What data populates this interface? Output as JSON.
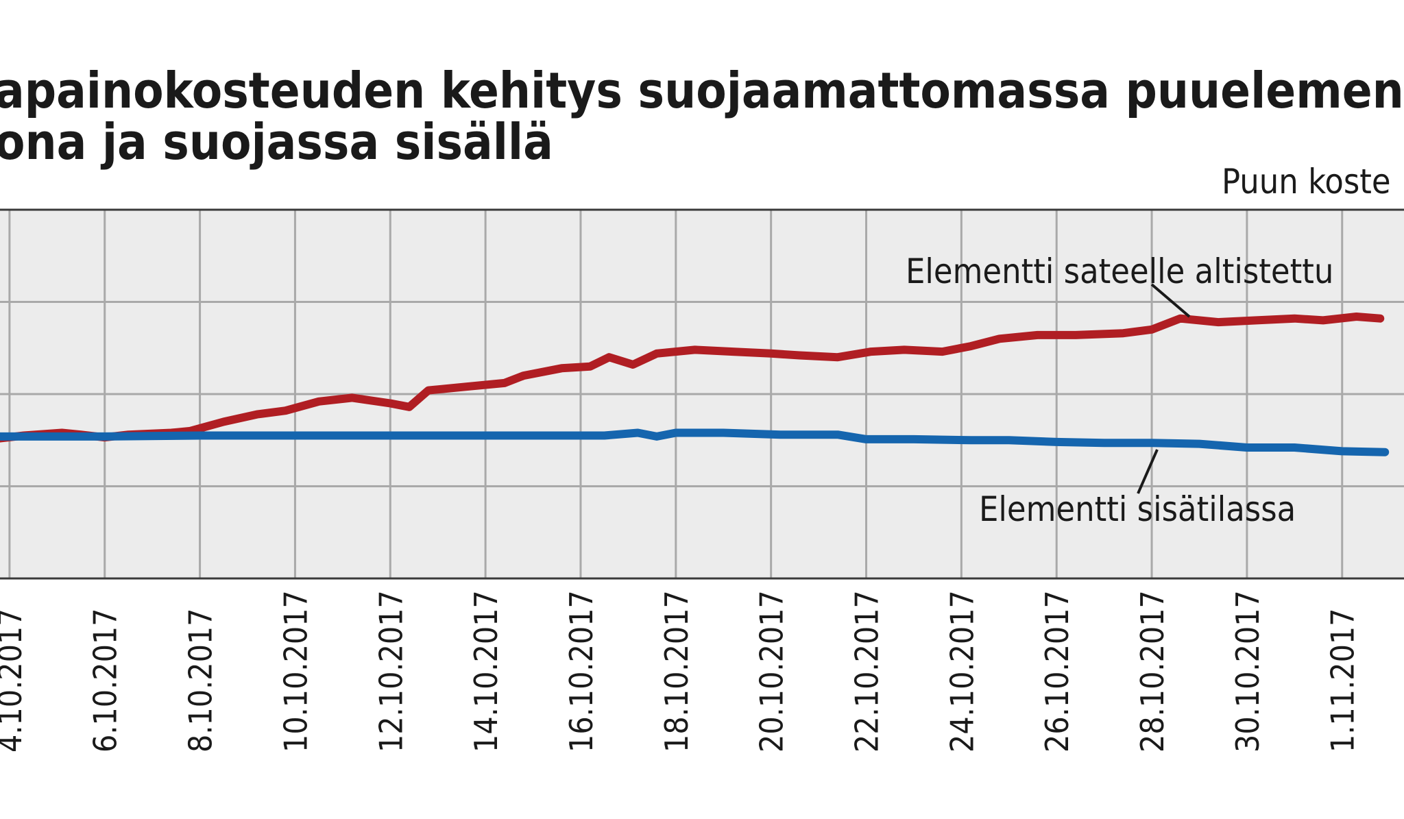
{
  "chart_data": {
    "type": "line",
    "title_line1": "apainokosteuden kehitys suojaamattomassa puuelementis",
    "title_line2": "ona ja suojassa sisällä",
    "ylabel": "Puun koste",
    "xlim": [
      -0.2,
      29.3
    ],
    "ylim": [
      0,
      4
    ],
    "x_ticks": [
      {
        "x": 0,
        "label": "4.10.2017"
      },
      {
        "x": 2,
        "label": "6.10.2017"
      },
      {
        "x": 4,
        "label": "8.10.2017"
      },
      {
        "x": 6,
        "label": "10.10.2017"
      },
      {
        "x": 8,
        "label": "12.10.2017"
      },
      {
        "x": 10,
        "label": "14.10.2017"
      },
      {
        "x": 12,
        "label": "16.10.2017"
      },
      {
        "x": 14,
        "label": "18.10.2017"
      },
      {
        "x": 16,
        "label": "20.10.2017"
      },
      {
        "x": 18,
        "label": "22.10.2017"
      },
      {
        "x": 20,
        "label": "24.10.2017"
      },
      {
        "x": 22,
        "label": "26.10.2017"
      },
      {
        "x": 24,
        "label": "28.10.2017"
      },
      {
        "x": 26,
        "label": "30.10.2017"
      },
      {
        "x": 28,
        "label": "1.11.2017"
      }
    ],
    "grid": true,
    "series": [
      {
        "name": "Elementti sateelle altistettu",
        "color": "#b01e23",
        "points": [
          [
            -0.2,
            1.52
          ],
          [
            0.3,
            1.55
          ],
          [
            1.1,
            1.58
          ],
          [
            1.5,
            1.56
          ],
          [
            2.0,
            1.53
          ],
          [
            2.5,
            1.56
          ],
          [
            3.4,
            1.58
          ],
          [
            3.8,
            1.6
          ],
          [
            4.5,
            1.7
          ],
          [
            5.2,
            1.78
          ],
          [
            5.8,
            1.82
          ],
          [
            6.5,
            1.92
          ],
          [
            7.2,
            1.96
          ],
          [
            8.0,
            1.9
          ],
          [
            8.4,
            1.86
          ],
          [
            8.8,
            2.04
          ],
          [
            9.6,
            2.08
          ],
          [
            10.4,
            2.12
          ],
          [
            10.8,
            2.2
          ],
          [
            11.6,
            2.28
          ],
          [
            12.2,
            2.3
          ],
          [
            12.6,
            2.4
          ],
          [
            13.1,
            2.32
          ],
          [
            13.6,
            2.44
          ],
          [
            14.4,
            2.48
          ],
          [
            15.2,
            2.46
          ],
          [
            16.0,
            2.44
          ],
          [
            16.6,
            2.42
          ],
          [
            17.4,
            2.4
          ],
          [
            18.1,
            2.46
          ],
          [
            18.8,
            2.48
          ],
          [
            19.6,
            2.46
          ],
          [
            20.2,
            2.52
          ],
          [
            20.8,
            2.6
          ],
          [
            21.6,
            2.64
          ],
          [
            22.4,
            2.64
          ],
          [
            23.4,
            2.66
          ],
          [
            24.0,
            2.7
          ],
          [
            24.6,
            2.82
          ],
          [
            25.4,
            2.78
          ],
          [
            26.2,
            2.8
          ],
          [
            27.0,
            2.82
          ],
          [
            27.6,
            2.8
          ],
          [
            28.3,
            2.84
          ],
          [
            28.8,
            2.82
          ]
        ]
      },
      {
        "name": "Elementti sisätilassa",
        "color": "#1565ae",
        "points": [
          [
            -0.2,
            1.54
          ],
          [
            2.0,
            1.54
          ],
          [
            4.0,
            1.55
          ],
          [
            6.0,
            1.55
          ],
          [
            8.0,
            1.55
          ],
          [
            10.0,
            1.55
          ],
          [
            12.5,
            1.55
          ],
          [
            13.2,
            1.58
          ],
          [
            13.6,
            1.54
          ],
          [
            14.0,
            1.58
          ],
          [
            15.0,
            1.58
          ],
          [
            16.2,
            1.56
          ],
          [
            17.4,
            1.56
          ],
          [
            18.0,
            1.51
          ],
          [
            19.0,
            1.51
          ],
          [
            20.2,
            1.5
          ],
          [
            21.0,
            1.5
          ],
          [
            22.0,
            1.48
          ],
          [
            23.0,
            1.47
          ],
          [
            24.0,
            1.47
          ],
          [
            25.0,
            1.46
          ],
          [
            26.0,
            1.42
          ],
          [
            27.0,
            1.42
          ],
          [
            28.0,
            1.38
          ],
          [
            28.9,
            1.37
          ]
        ]
      }
    ]
  }
}
